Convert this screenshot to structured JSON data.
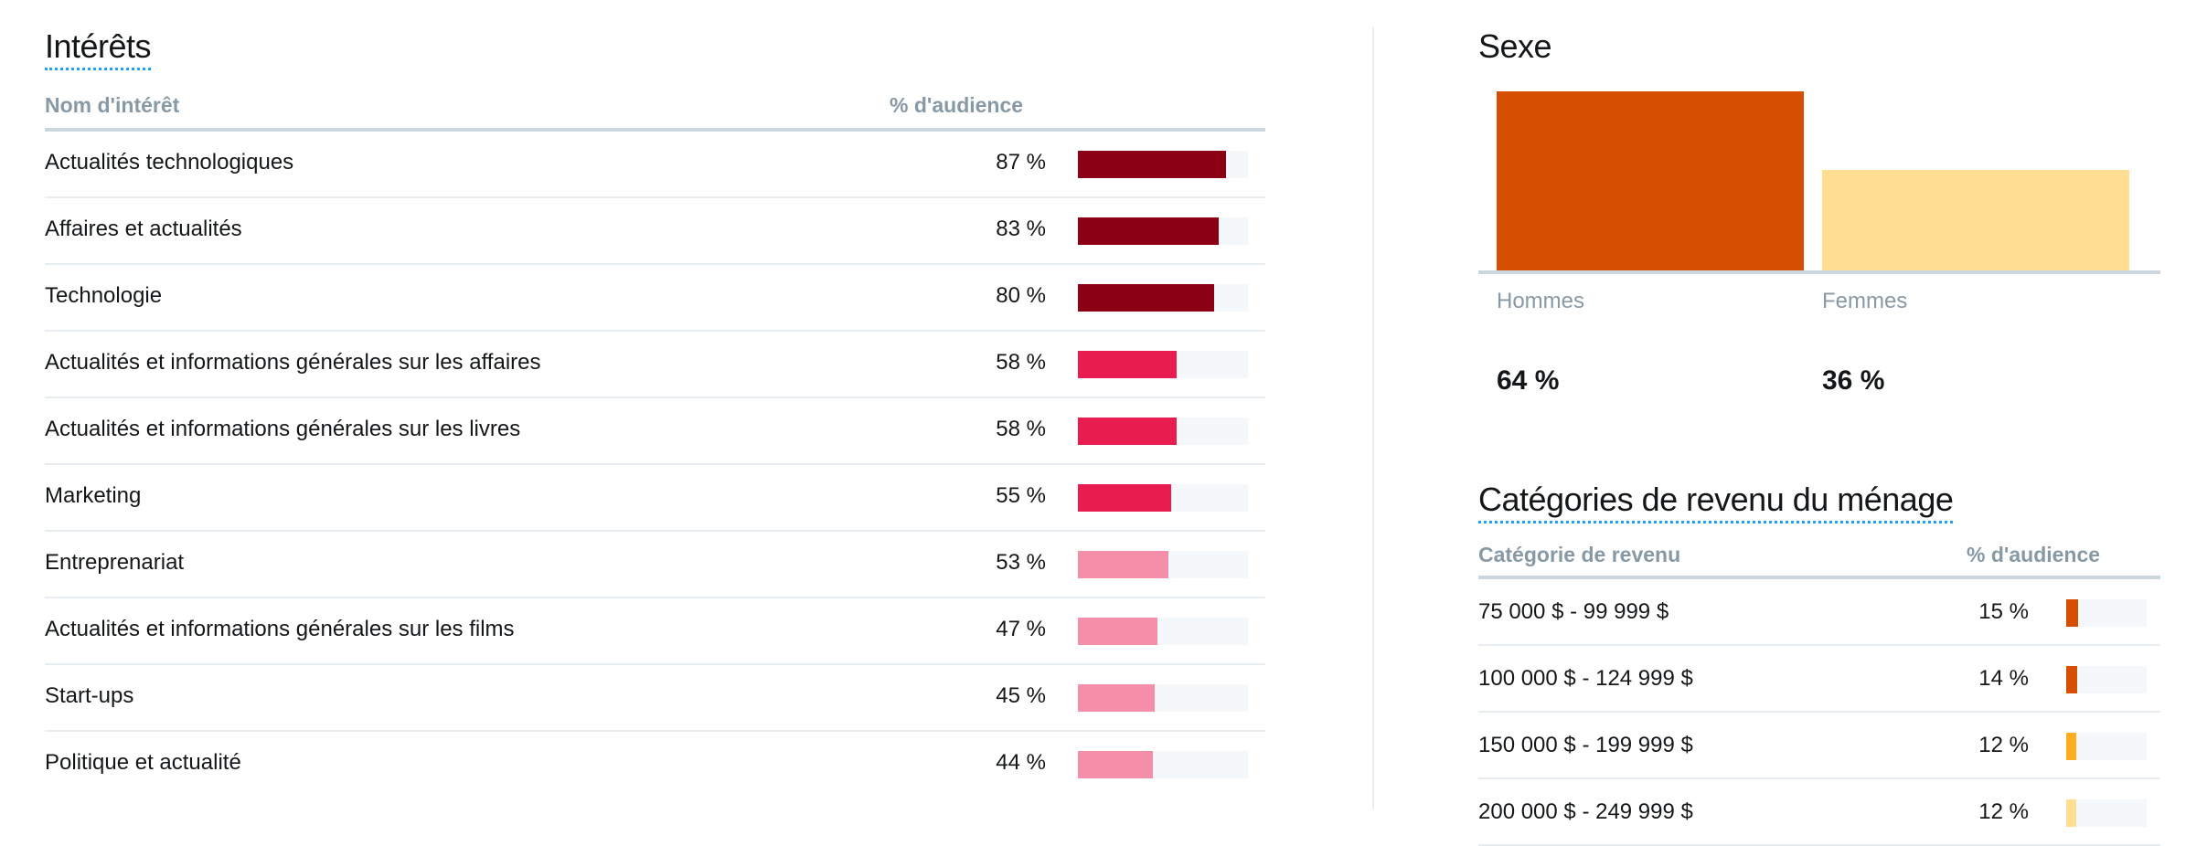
{
  "interests": {
    "title": "Intérêts",
    "col_name": "Nom d'intérêt",
    "col_pct": "% d'audience",
    "rows": [
      {
        "name": "Actualités technologiques",
        "pct_label": "87 %",
        "value": 87,
        "color": "#8c0016"
      },
      {
        "name": "Affaires et actualités",
        "pct_label": "83 %",
        "value": 83,
        "color": "#8c0016"
      },
      {
        "name": "Technologie",
        "pct_label": "80 %",
        "value": 80,
        "color": "#8c0016"
      },
      {
        "name": "Actualités et informations générales sur les affaires",
        "pct_label": "58 %",
        "value": 58,
        "color": "#e81c4f"
      },
      {
        "name": "Actualités et informations générales sur les livres",
        "pct_label": "58 %",
        "value": 58,
        "color": "#e81c4f"
      },
      {
        "name": "Marketing",
        "pct_label": "55 %",
        "value": 55,
        "color": "#e81c4f"
      },
      {
        "name": "Entreprenariat",
        "pct_label": "53 %",
        "value": 53,
        "color": "#f58ea8"
      },
      {
        "name": "Actualités et informations générales sur les films",
        "pct_label": "47 %",
        "value": 47,
        "color": "#f58ea8"
      },
      {
        "name": "Start-ups",
        "pct_label": "45 %",
        "value": 45,
        "color": "#f58ea8"
      },
      {
        "name": "Politique et actualité",
        "pct_label": "44 %",
        "value": 44,
        "color": "#f58ea8"
      }
    ]
  },
  "sex": {
    "title": "Sexe",
    "categories": [
      {
        "label": "Hommes",
        "pct_label": "64 %",
        "value": 64,
        "color": "#d64f00"
      },
      {
        "label": "Femmes",
        "pct_label": "36 %",
        "value": 36,
        "color": "#ffdd91"
      }
    ]
  },
  "income": {
    "title": "Catégories de revenu du ménage",
    "col_name": "Catégorie de revenu",
    "col_pct": "% d'audience",
    "rows": [
      {
        "name": "75 000 $ - 99 999 $",
        "pct_label": "15 %",
        "value": 15,
        "color": "#d64f00"
      },
      {
        "name": "100 000 $ - 124 999 $",
        "pct_label": "14 %",
        "value": 14,
        "color": "#d64f00"
      },
      {
        "name": "150 000 $ - 199 999 $",
        "pct_label": "12 %",
        "value": 12,
        "color": "#ffad1f"
      },
      {
        "name": "200 000 $ - 249 999 $",
        "pct_label": "12 %",
        "value": 12,
        "color": "#ffdd91"
      }
    ]
  }
}
